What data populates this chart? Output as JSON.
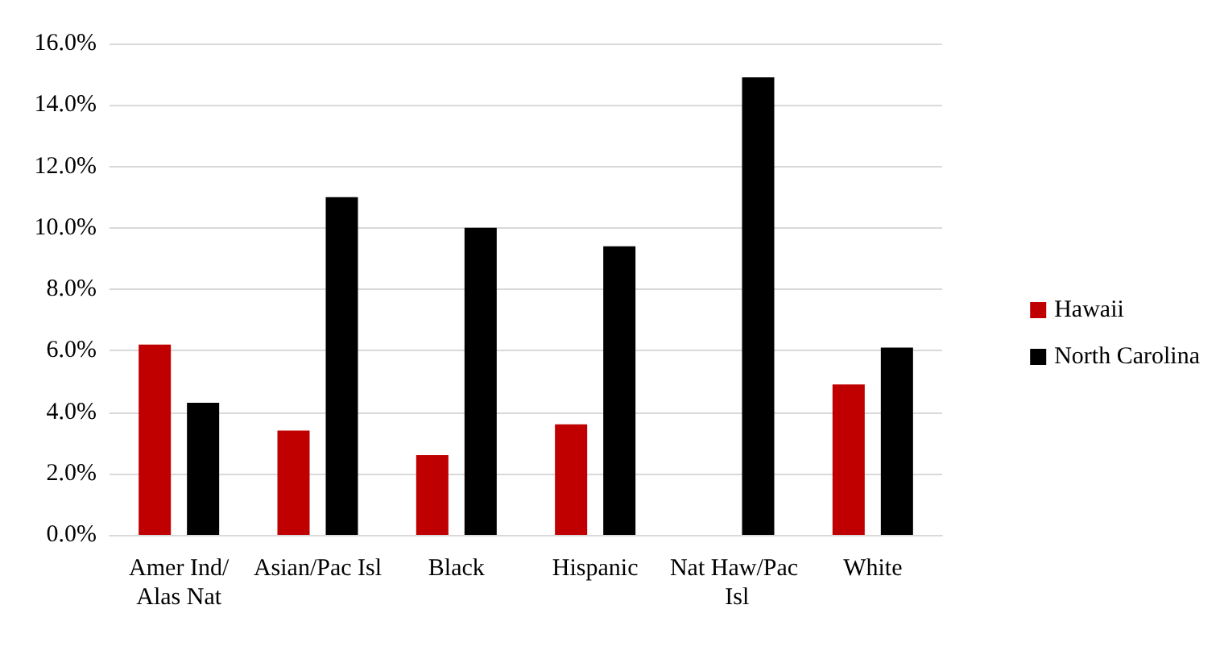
{
  "chart_data": {
    "type": "bar",
    "categories": [
      "Amer Ind/Alas Nat",
      "Asian/Pac Isl",
      "Black",
      "Hispanic",
      "Nat Haw/Pac Isl",
      "White"
    ],
    "series": [
      {
        "name": "Hawaii",
        "color": "#c00000",
        "values": [
          6.2,
          3.4,
          2.6,
          3.6,
          null,
          4.9
        ]
      },
      {
        "name": "North Carolina",
        "color": "#000000",
        "values": [
          4.3,
          11.0,
          10.0,
          9.4,
          14.9,
          6.1
        ]
      }
    ],
    "ylim": [
      0,
      16
    ],
    "yticks": [
      {
        "value": 0,
        "label": "0.0%"
      },
      {
        "value": 2,
        "label": "2.0%"
      },
      {
        "value": 4,
        "label": "4.0%"
      },
      {
        "value": 6,
        "label": "6.0%"
      },
      {
        "value": 8,
        "label": "8.0%"
      },
      {
        "value": 10,
        "label": "10.0%"
      },
      {
        "value": 12,
        "label": "12.0%"
      },
      {
        "value": 14,
        "label": "14.0%"
      },
      {
        "value": 16,
        "label": "16.0%"
      }
    ],
    "grid": "y",
    "legend": "right"
  }
}
